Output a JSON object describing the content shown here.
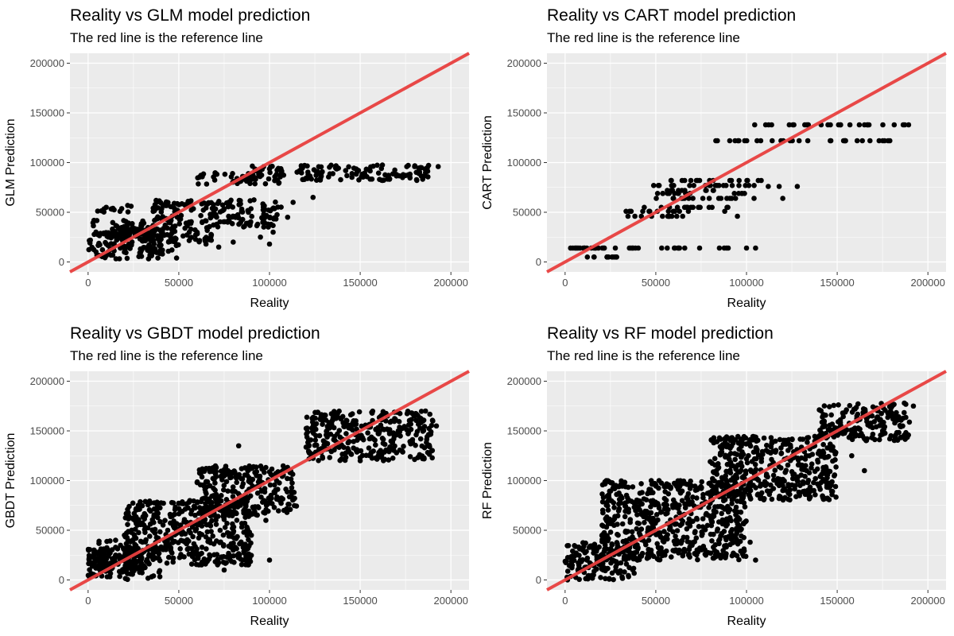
{
  "figure": {
    "background": "#FFFFFF"
  },
  "theme": {
    "panel_bg": "#EBEBEB",
    "grid_color": "#FFFFFF",
    "point_color": "#000000",
    "tick_color": "#4D4D4D"
  },
  "chart_data": [
    {
      "type": "scatter",
      "title": "Reality vs GLM model prediction",
      "subtitle": "The red line is the reference line",
      "xlabel": "Reality",
      "ylabel": "GLM Prediction",
      "xlim": [
        -10000,
        210000
      ],
      "ylim": [
        -10000,
        210000
      ],
      "x_ticks": [
        0,
        50000,
        100000,
        150000,
        200000
      ],
      "y_ticks": [
        0,
        50000,
        100000,
        150000,
        200000
      ],
      "x_tick_labels": [
        "0",
        "50000",
        "100000",
        "150000",
        "200000"
      ],
      "y_tick_labels": [
        "0",
        "50000",
        "100000",
        "150000",
        "200000"
      ],
      "grid": true,
      "reference_line": {
        "slope": 1,
        "intercept": 0,
        "color": "#E8403F"
      },
      "point_groups": [
        {
          "x": [
            0,
            50000
          ],
          "y": [
            3000,
            32000
          ]
        },
        {
          "x": [
            2000,
            30000
          ],
          "y": [
            25000,
            42000
          ]
        },
        {
          "x": [
            15000,
            70000
          ],
          "y": [
            20000,
            35000
          ]
        },
        {
          "x": [
            30000,
            105000
          ],
          "y": [
            35000,
            48000
          ]
        },
        {
          "x": [
            35000,
            108000
          ],
          "y": [
            50000,
            63000
          ]
        },
        {
          "x": [
            60000,
            108000
          ],
          "y": [
            78000,
            90000
          ]
        },
        {
          "x": [
            90000,
            108000
          ],
          "y": [
            88000,
            98000
          ]
        },
        {
          "x": [
            115000,
            190000
          ],
          "y": [
            82000,
            98000
          ]
        },
        {
          "x": [
            5000,
            25000
          ],
          "y": [
            50000,
            57000
          ]
        }
      ],
      "points": [
        [
          124000,
          65000
        ],
        [
          113000,
          60000
        ],
        [
          110000,
          45000
        ],
        [
          102000,
          30000
        ],
        [
          100000,
          18000
        ],
        [
          95000,
          25000
        ],
        [
          80000,
          20000
        ],
        [
          72000,
          15000
        ],
        [
          65000,
          18000
        ],
        [
          20000,
          10000
        ],
        [
          10000,
          55000
        ],
        [
          193000,
          96000
        ],
        [
          186000,
          90000
        ],
        [
          180000,
          96000
        ],
        [
          170000,
          88000
        ]
      ]
    },
    {
      "type": "scatter",
      "title": "Reality vs CART model prediction",
      "subtitle": "The red line is the reference line",
      "xlabel": "Reality",
      "ylabel": "CART Prediction",
      "xlim": [
        -10000,
        210000
      ],
      "ylim": [
        -10000,
        210000
      ],
      "x_ticks": [
        0,
        50000,
        100000,
        150000,
        200000
      ],
      "y_ticks": [
        0,
        50000,
        100000,
        150000,
        200000
      ],
      "x_tick_labels": [
        "0",
        "50000",
        "100000",
        "150000",
        "200000"
      ],
      "y_tick_labels": [
        "0",
        "50000",
        "100000",
        "150000",
        "200000"
      ],
      "grid": true,
      "reference_line": {
        "slope": 1,
        "intercept": 0,
        "color": "#E8403F"
      },
      "point_groups": [
        {
          "x": [
            0,
            22000
          ],
          "y": [
            14000,
            14000
          ]
        },
        {
          "x": [
            0,
            90000
          ],
          "y": [
            14000,
            14000
          ]
        },
        {
          "x": [
            0,
            33000
          ],
          "y": [
            5000,
            5000
          ]
        },
        {
          "x": [
            30000,
            65000
          ],
          "y": [
            46000,
            46000
          ]
        },
        {
          "x": [
            33000,
            70000
          ],
          "y": [
            51000,
            51000
          ]
        },
        {
          "x": [
            38000,
            90000
          ],
          "y": [
            55000,
            55000
          ]
        },
        {
          "x": [
            50000,
            105000
          ],
          "y": [
            64000,
            64000
          ]
        },
        {
          "x": [
            45000,
            100000
          ],
          "y": [
            69000,
            69000
          ]
        },
        {
          "x": [
            55000,
            85000
          ],
          "y": [
            72000,
            72000
          ]
        },
        {
          "x": [
            40000,
            108000
          ],
          "y": [
            77000,
            77000
          ]
        },
        {
          "x": [
            55000,
            110000
          ],
          "y": [
            82000,
            82000
          ]
        },
        {
          "x": [
            80000,
            182000
          ],
          "y": [
            122000,
            122000
          ]
        },
        {
          "x": [
            100000,
            192000
          ],
          "y": [
            138000,
            138000
          ]
        }
      ],
      "points": [
        [
          105000,
          14000
        ],
        [
          100000,
          14000
        ],
        [
          112000,
          76000
        ],
        [
          118000,
          76000
        ],
        [
          128000,
          76000
        ],
        [
          120000,
          64000
        ],
        [
          95000,
          46000
        ],
        [
          88000,
          51000
        ]
      ]
    },
    {
      "type": "scatter",
      "title": "Reality vs GBDT model prediction",
      "subtitle": "The red line is the reference line",
      "xlabel": "Reality",
      "ylabel": "GBDT Prediction",
      "xlim": [
        -10000,
        210000
      ],
      "ylim": [
        -10000,
        210000
      ],
      "x_ticks": [
        0,
        50000,
        100000,
        150000,
        200000
      ],
      "y_ticks": [
        0,
        50000,
        100000,
        150000,
        200000
      ],
      "x_tick_labels": [
        "0",
        "50000",
        "100000",
        "150000",
        "200000"
      ],
      "y_tick_labels": [
        "0",
        "50000",
        "100000",
        "150000",
        "200000"
      ],
      "grid": true,
      "reference_line": {
        "slope": 1,
        "intercept": 0,
        "color": "#E8403F"
      },
      "point_groups": [
        {
          "x": [
            0,
            40000
          ],
          "y": [
            0,
            35000
          ]
        },
        {
          "x": [
            20000,
            90000
          ],
          "y": [
            15000,
            80000
          ]
        },
        {
          "x": [
            60000,
            115000
          ],
          "y": [
            65000,
            115000
          ]
        },
        {
          "x": [
            120000,
            190000
          ],
          "y": [
            120000,
            170000
          ]
        },
        {
          "x": [
            0,
            30000
          ],
          "y": [
            10000,
            40000
          ]
        }
      ],
      "points": [
        [
          83000,
          135000
        ],
        [
          108000,
          70000
        ],
        [
          98000,
          60000
        ],
        [
          90000,
          45000
        ],
        [
          80000,
          30000
        ],
        [
          60000,
          25000
        ],
        [
          75000,
          10000
        ],
        [
          100000,
          20000
        ],
        [
          170000,
          128000
        ],
        [
          160000,
          125000
        ],
        [
          150000,
          120000
        ],
        [
          192000,
          155000
        ],
        [
          186000,
          170000
        ],
        [
          190000,
          160000
        ],
        [
          165000,
          165000
        ]
      ]
    },
    {
      "type": "scatter",
      "title": "Reality vs RF model prediction",
      "subtitle": "The red line is the reference line",
      "xlabel": "Reality",
      "ylabel": "RF Prediction",
      "xlim": [
        -10000,
        210000
      ],
      "ylim": [
        -10000,
        210000
      ],
      "x_ticks": [
        0,
        50000,
        100000,
        150000,
        200000
      ],
      "y_ticks": [
        0,
        50000,
        100000,
        150000,
        200000
      ],
      "x_tick_labels": [
        "0",
        "50000",
        "100000",
        "150000",
        "200000"
      ],
      "y_tick_labels": [
        "0",
        "50000",
        "100000",
        "150000",
        "200000"
      ],
      "grid": true,
      "reference_line": {
        "slope": 1,
        "intercept": 0,
        "color": "#E8403F"
      },
      "point_groups": [
        {
          "x": [
            0,
            40000
          ],
          "y": [
            0,
            38000
          ]
        },
        {
          "x": [
            20000,
            100000
          ],
          "y": [
            20000,
            100000
          ]
        },
        {
          "x": [
            80000,
            150000
          ],
          "y": [
            80000,
            145000
          ]
        },
        {
          "x": [
            140000,
            190000
          ],
          "y": [
            140000,
            178000
          ]
        }
      ],
      "points": [
        [
          51000,
          77000
        ],
        [
          27000,
          55000
        ],
        [
          90000,
          60000
        ],
        [
          94000,
          45000
        ],
        [
          102000,
          38000
        ],
        [
          105000,
          20000
        ],
        [
          118000,
          95000
        ],
        [
          120000,
          90000
        ],
        [
          158000,
          125000
        ],
        [
          165000,
          110000
        ],
        [
          175000,
          150000
        ],
        [
          192000,
          175000
        ],
        [
          187000,
          178000
        ],
        [
          70000,
          35000
        ],
        [
          55000,
          25000
        ]
      ]
    }
  ]
}
